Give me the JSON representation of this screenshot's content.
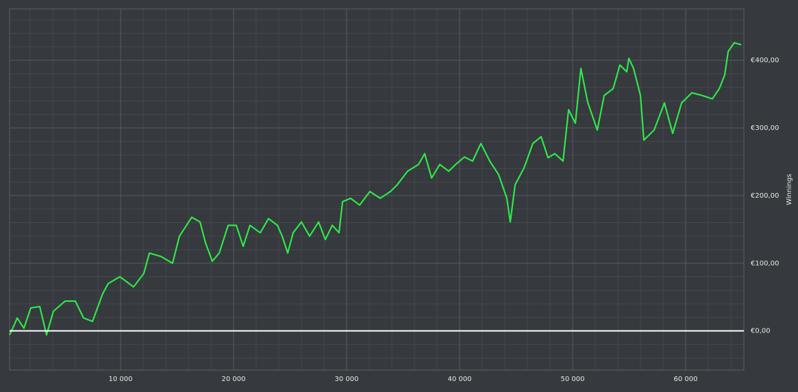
{
  "chart_data": {
    "type": "line",
    "y_axis_label": "Winnings",
    "x": [
      180,
      600,
      850,
      1450,
      2060,
      2850,
      3450,
      4060,
      5090,
      6000,
      6730,
      7520,
      8420,
      8910,
      9940,
      11150,
      12060,
      12550,
      13580,
      14600,
      15210,
      16300,
      17030,
      17520,
      18120,
      18730,
      19520,
      20240,
      20850,
      21450,
      22360,
      23090,
      23880,
      24300,
      24790,
      25270,
      26000,
      26730,
      27520,
      28120,
      28730,
      29330,
      29640,
      30360,
      31150,
      32060,
      32970,
      33880,
      34480,
      35390,
      36360,
      36910,
      37520,
      38240,
      39030,
      39640,
      40420,
      41150,
      41880,
      42670,
      43450,
      44180,
      44480,
      44910,
      45700,
      46480,
      47210,
      47820,
      48420,
      49150,
      49640,
      50240,
      50730,
      51330,
      52180,
      52790,
      53580,
      54180,
      54790,
      54970,
      55390,
      56000,
      56300,
      57210,
      58120,
      58850,
      59640,
      60550,
      61450,
      62360,
      62970,
      63450,
      63760,
      64300,
      64910
    ],
    "values": [
      -6,
      9,
      19,
      4,
      34,
      36,
      -6,
      29,
      44,
      44,
      19,
      14,
      55,
      70,
      80,
      65,
      85,
      115,
      110,
      100,
      140,
      168,
      161,
      130,
      103,
      115,
      156,
      156,
      125,
      156,
      145,
      166,
      156,
      140,
      115,
      145,
      161,
      140,
      161,
      135,
      156,
      145,
      191,
      196,
      186,
      206,
      196,
      206,
      216,
      236,
      246,
      262,
      226,
      246,
      236,
      246,
      257,
      251,
      277,
      251,
      231,
      196,
      161,
      216,
      241,
      277,
      287,
      256,
      262,
      251,
      327,
      307,
      388,
      338,
      297,
      348,
      358,
      393,
      383,
      403,
      388,
      348,
      282,
      297,
      337,
      292,
      337,
      352,
      348,
      343,
      358,
      378,
      413,
      426,
      423
    ],
    "color": "#2ee84a",
    "xlim": [
      182,
      65150
    ],
    "ylim": [
      -58,
      476
    ],
    "xticks": [
      {
        "value": 10000,
        "label": "10 000"
      },
      {
        "value": 20000,
        "label": "20 000"
      },
      {
        "value": 30000,
        "label": "30 000"
      },
      {
        "value": 40000,
        "label": "40 000"
      },
      {
        "value": 50000,
        "label": "50 000"
      },
      {
        "value": 60000,
        "label": "60 000"
      }
    ],
    "yticks": [
      {
        "value": 0,
        "label": "€0,00"
      },
      {
        "value": 100,
        "label": "€100,00"
      },
      {
        "value": 200,
        "label": "€200,00"
      },
      {
        "value": 300,
        "label": "€300,00"
      },
      {
        "value": 400,
        "label": "€400,00"
      }
    ],
    "minor_xticks": [
      2000,
      4000,
      6000,
      8000,
      12000,
      14000,
      16000,
      18000,
      22000,
      24000,
      26000,
      28000,
      32000,
      34000,
      36000,
      38000,
      42000,
      44000,
      46000,
      48000,
      52000,
      54000,
      56000,
      58000,
      62000,
      64000
    ],
    "minor_yticks": [
      -40,
      -20,
      20,
      40,
      60,
      80,
      120,
      140,
      160,
      180,
      220,
      240,
      260,
      280,
      320,
      340,
      360,
      380,
      420,
      440,
      460
    ],
    "grid": true,
    "hline": {
      "value": 0,
      "color": "#ffffff"
    },
    "y_axis_side": "right"
  }
}
